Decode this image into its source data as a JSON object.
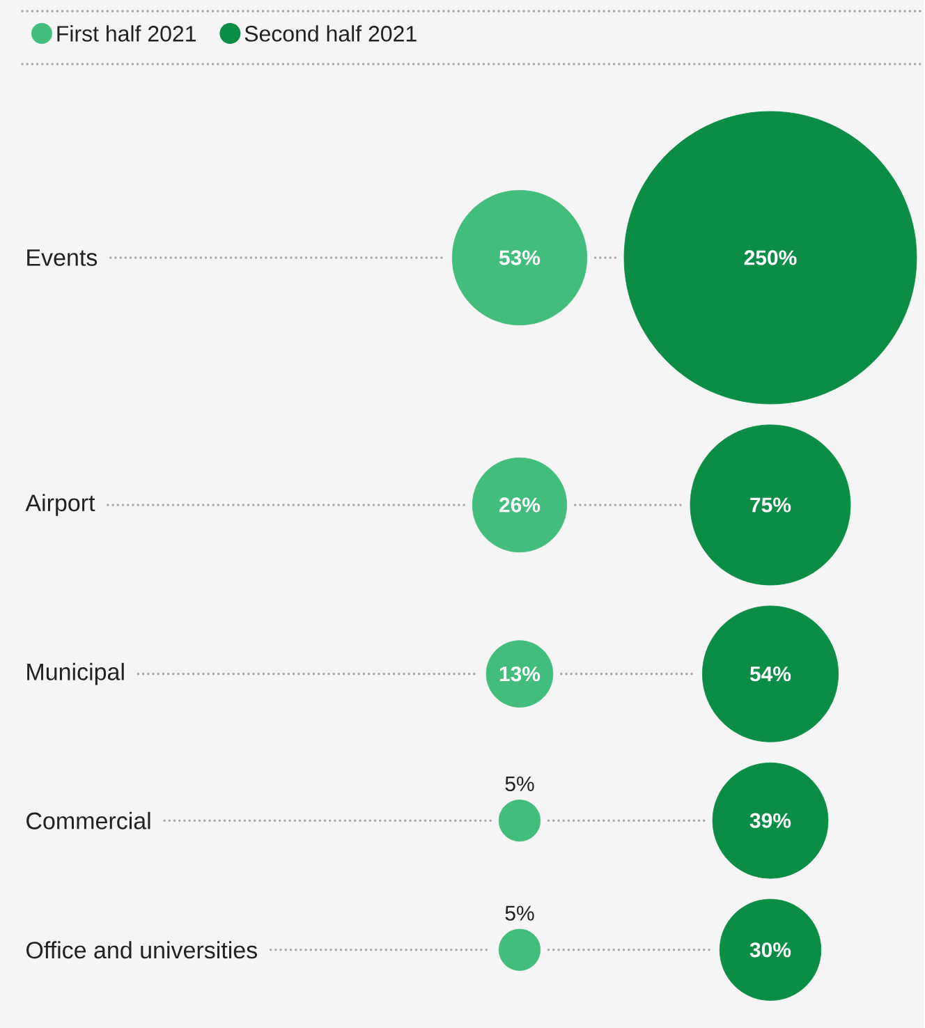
{
  "chart_data": {
    "type": "other",
    "legend": "top left",
    "categories": [
      "Events",
      "Airport",
      "Municipal",
      "Commercial",
      "Office and universities"
    ],
    "series": [
      {
        "name": "First half 2021",
        "color": "#43bd7c",
        "values": [
          53,
          26,
          13,
          5,
          5
        ],
        "value_labels": [
          "53%",
          "26%",
          "13%",
          "5%",
          "5%"
        ]
      },
      {
        "name": "Second half 2021",
        "color": "#0b8d45",
        "values": [
          250,
          75,
          54,
          39,
          30
        ],
        "value_labels": [
          "250%",
          "75%",
          "54%",
          "39%",
          "30%"
        ]
      }
    ]
  }
}
